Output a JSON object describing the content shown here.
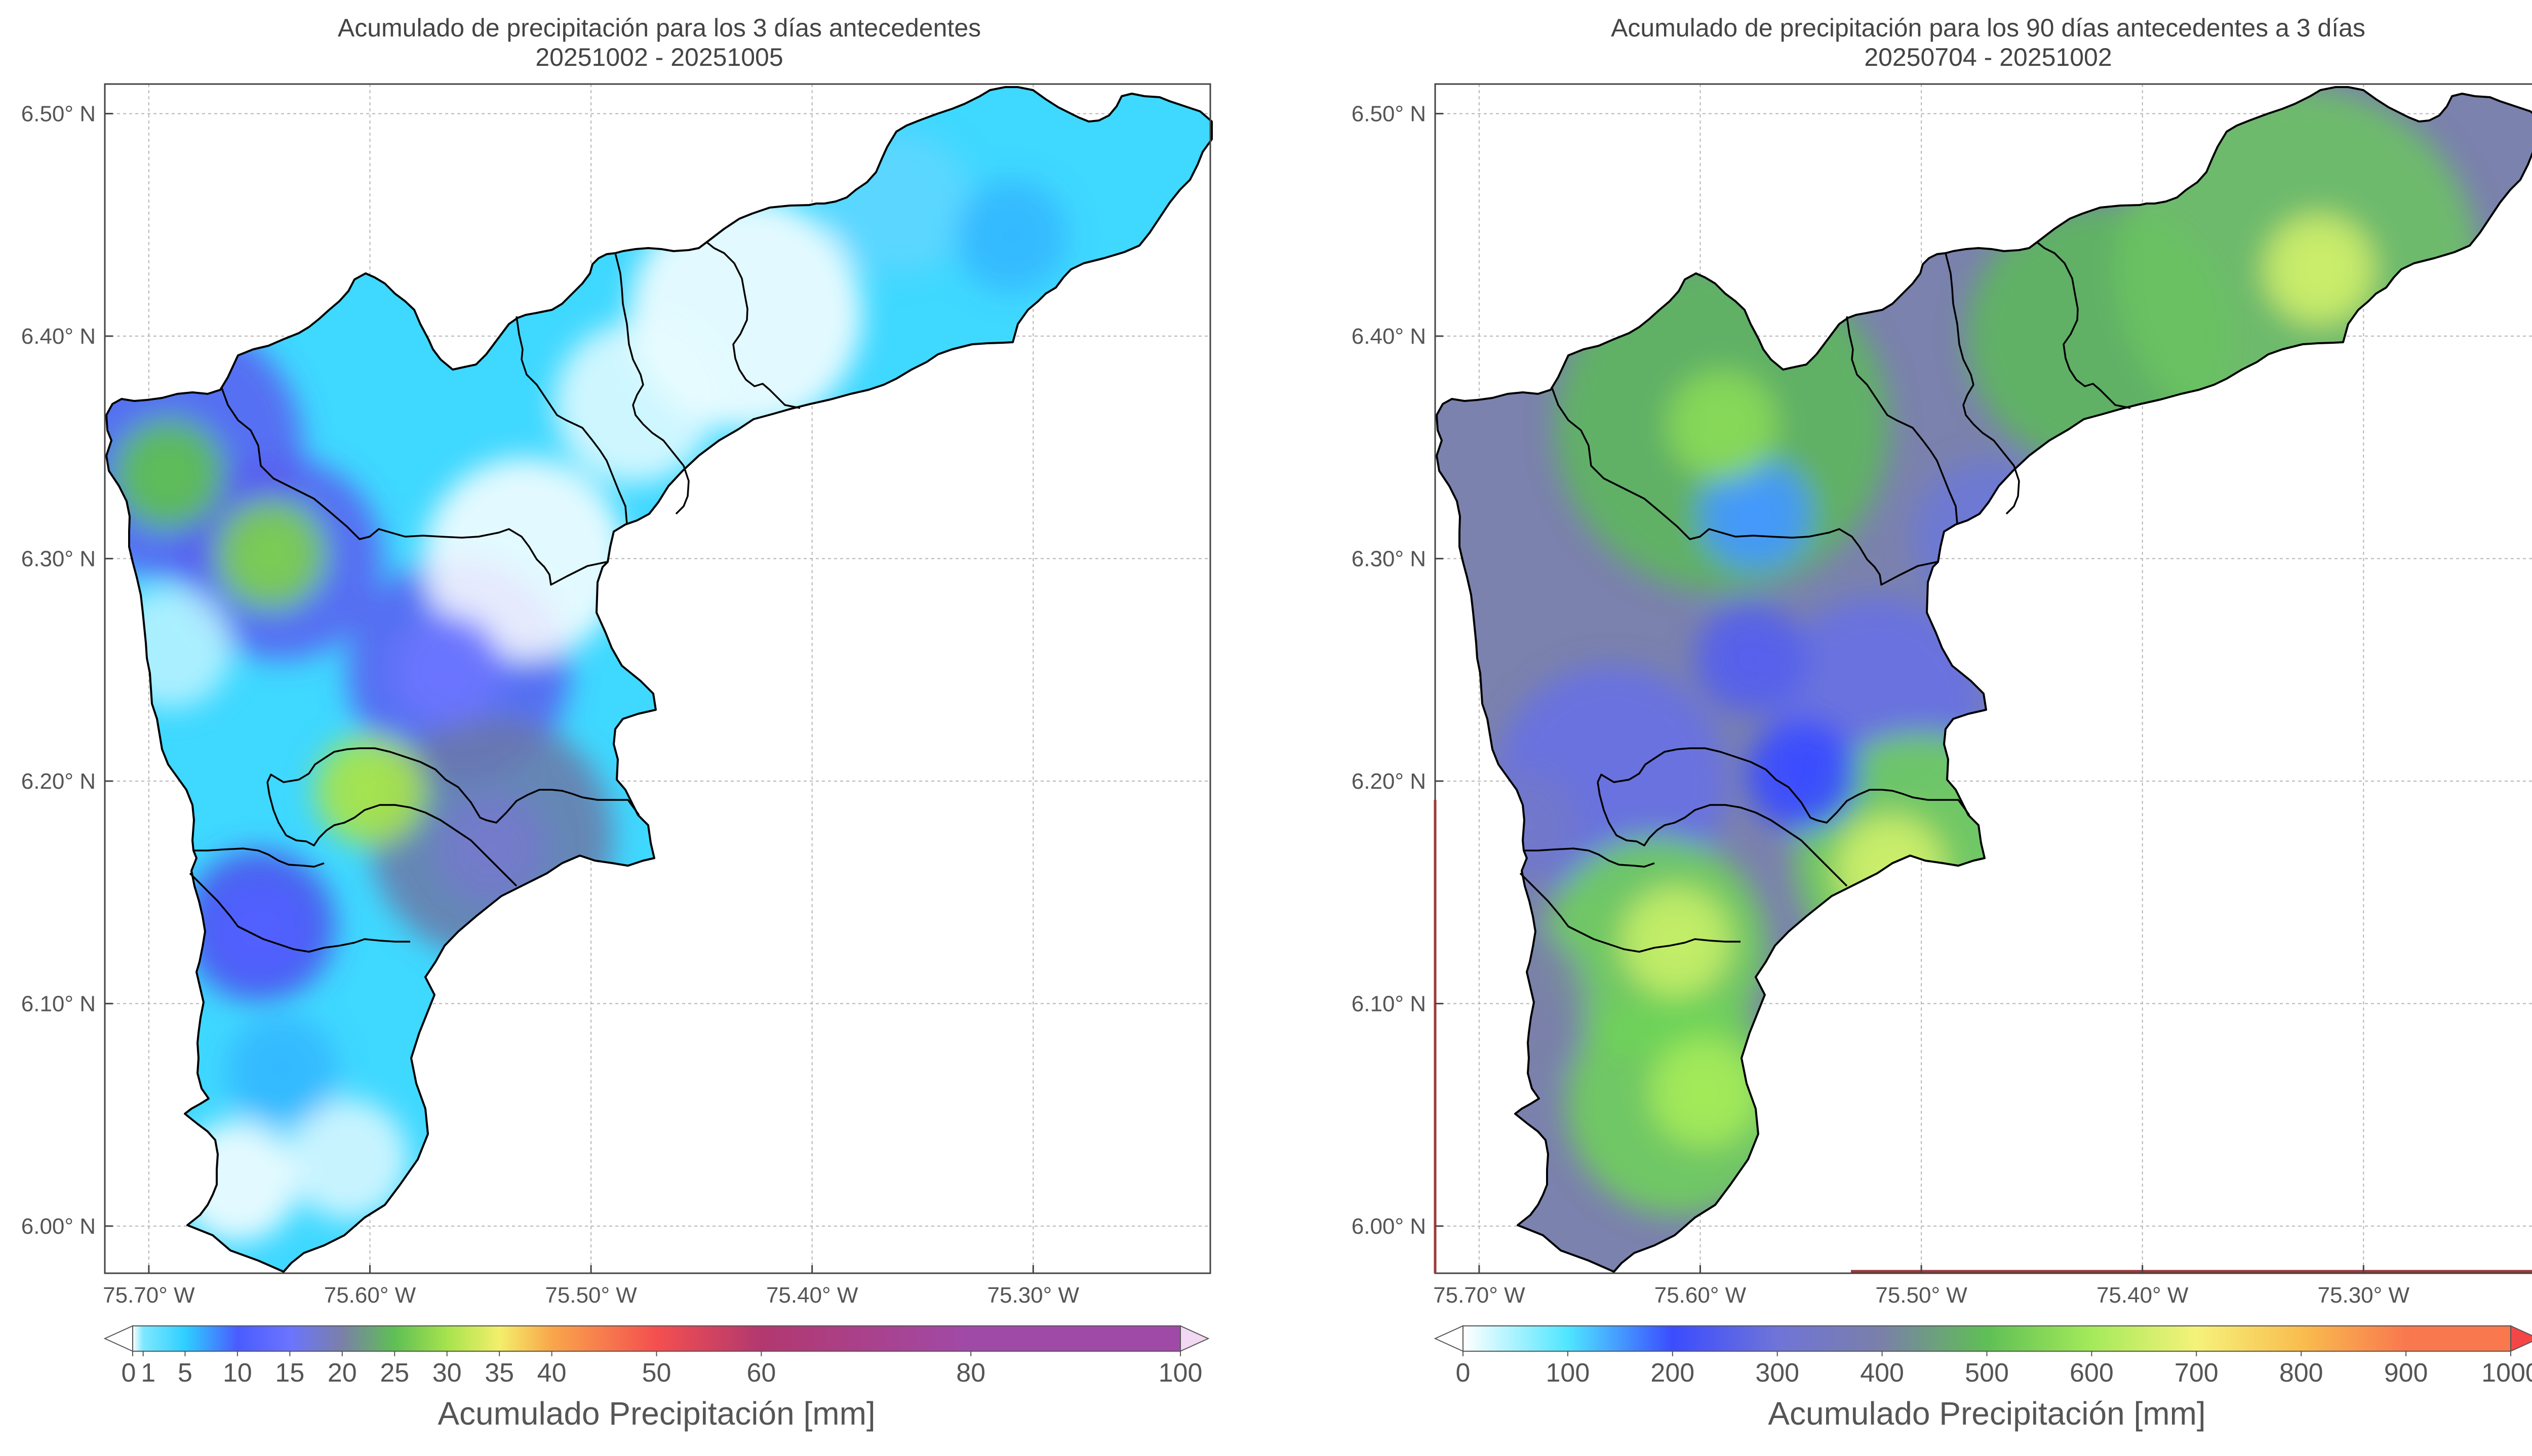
{
  "chart_data": [
    {
      "type": "heatmap",
      "title_line1": "Acumulado de precipitación para los 3 días antecedentes",
      "title_line2": "20251002 - 20251005",
      "xlim": [
        -75.7199,
        -75.2199
      ],
      "ylim": [
        5.9788,
        6.5133
      ],
      "x_ticks": [
        -75.7,
        -75.6,
        -75.5,
        -75.4,
        -75.3
      ],
      "x_tick_labels": [
        "75.70° W",
        "75.60° W",
        "75.50° W",
        "75.40° W",
        "75.30° W"
      ],
      "y_ticks": [
        6.0,
        6.1,
        6.2,
        6.3,
        6.4,
        6.5
      ],
      "y_tick_labels": [
        "6.00° N",
        "6.10° N",
        "6.20° N",
        "6.30° N",
        "6.40° N",
        "6.50° N"
      ],
      "grid": true,
      "hotspots": [
        {
          "lon": -75.691,
          "lat": 6.338,
          "value": 25
        },
        {
          "lon": -75.645,
          "lat": 6.302,
          "value": 27
        },
        {
          "lon": -75.6,
          "lat": 6.196,
          "value": 30
        },
        {
          "lon": -75.565,
          "lat": 6.25,
          "value": 15
        },
        {
          "lon": -75.65,
          "lat": 6.133,
          "value": 11
        },
        {
          "lon": -75.64,
          "lat": 6.07,
          "value": 6
        },
        {
          "lon": -75.545,
          "lat": 6.17,
          "value": 18
        },
        {
          "lon": -75.31,
          "lat": 6.445,
          "value": 6
        }
      ],
      "colorbar": {
        "label": "Acumulado Precipitación [mm]",
        "ticks": [
          0,
          1,
          5,
          10,
          15,
          20,
          25,
          30,
          35,
          40,
          50,
          60,
          80,
          100
        ],
        "tick_labels": [
          "0",
          "1",
          "5",
          "10",
          "15",
          "20",
          "25",
          "30",
          "35",
          "40",
          "50",
          "60",
          "80",
          "100"
        ],
        "colors": [
          "#ffffff",
          "#ffffff",
          "#7ee8ff",
          "#2ecfff",
          "#4a5cff",
          "#6b74ff",
          "#7a80a8",
          "#5fbf55",
          "#a6e34d",
          "#f3ef6a",
          "#f9a64b",
          "#f44f4f",
          "#b2386f",
          "#a04aa8",
          "#f2d8f2"
        ],
        "extend": "both"
      }
    },
    {
      "type": "heatmap",
      "title_line1": "Acumulado de precipitación para los 90 días antecedentes a 3 días",
      "title_line2": "20250704 - 20251002",
      "xlim": [
        -75.7199,
        -75.2199
      ],
      "ylim": [
        5.9788,
        6.5133
      ],
      "x_ticks": [
        -75.7,
        -75.6,
        -75.5,
        -75.4,
        -75.3
      ],
      "x_tick_labels": [
        "75.70° W",
        "75.60° W",
        "75.50° W",
        "75.40° W",
        "75.30° W"
      ],
      "y_ticks": [
        6.0,
        6.1,
        6.2,
        6.3,
        6.4,
        6.5
      ],
      "y_tick_labels": [
        "6.00° N",
        "6.10° N",
        "6.20° N",
        "6.30° N",
        "6.40° N",
        "6.50° N"
      ],
      "grid": true,
      "hotspots": [
        {
          "lon": -75.32,
          "lat": 6.43,
          "value": 650
        },
        {
          "lon": -75.575,
          "lat": 6.32,
          "value": 150
        },
        {
          "lon": -75.577,
          "lat": 6.255,
          "value": 250
        },
        {
          "lon": -75.554,
          "lat": 6.203,
          "value": 200
        },
        {
          "lon": -75.514,
          "lat": 6.16,
          "value": 650
        },
        {
          "lon": -75.611,
          "lat": 6.128,
          "value": 640
        },
        {
          "lon": -75.598,
          "lat": 6.06,
          "value": 600
        },
        {
          "lon": -75.68,
          "lat": 6.18,
          "value": 330
        },
        {
          "lon": -75.59,
          "lat": 6.36,
          "value": 560
        }
      ],
      "colorbar": {
        "label": "Acumulado Precipitación [mm]",
        "ticks": [
          0,
          100,
          200,
          300,
          400,
          500,
          600,
          700,
          800,
          900,
          1000
        ],
        "tick_labels": [
          "0",
          "100",
          "200",
          "300",
          "400",
          "500",
          "600",
          "700",
          "800",
          "900",
          "1000"
        ],
        "colors": [
          "#ffffff",
          "#ffffff",
          "#4fe6ff",
          "#3b4cff",
          "#6f74d8",
          "#7a80a8",
          "#5fbf55",
          "#a4ea5a",
          "#f5f27a",
          "#f9bd4e",
          "#f9784e",
          "#f44646"
        ],
        "extend": "both"
      }
    }
  ]
}
